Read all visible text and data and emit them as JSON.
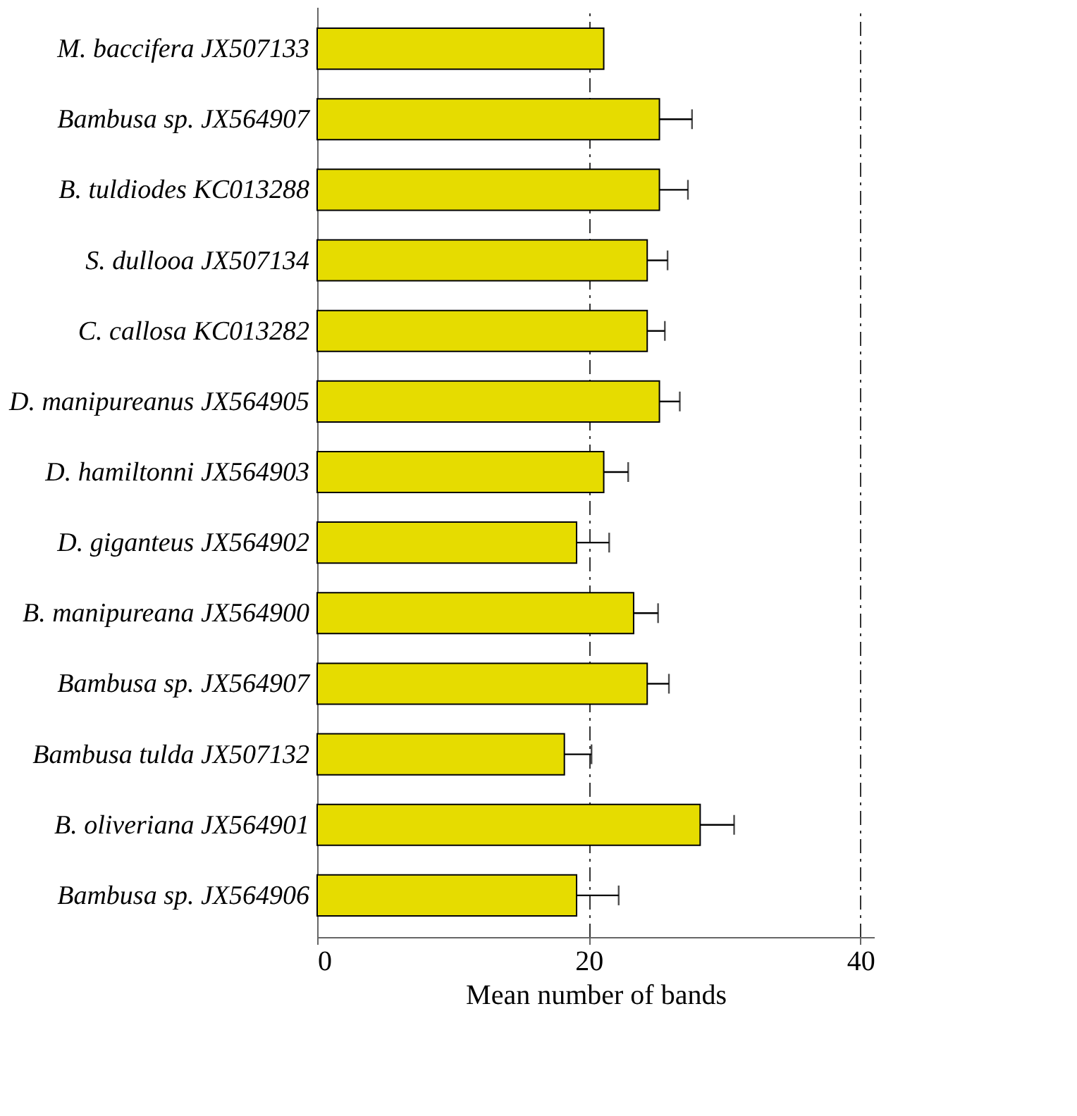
{
  "chart_data": {
    "type": "bar",
    "orientation": "horizontal",
    "xlabel": "Mean number of bands",
    "categories": [
      "M. baccifera JX507133",
      "Bambusa sp. JX564907",
      "B. tuldiodes KC013288",
      "S. dullooa JX507134",
      "C. callosa KC013282",
      "D. manipureanus JX564905",
      "D. hamiltonni JX564903",
      "D. giganteus JX564902",
      "B. manipureana JX564900",
      "Bambusa sp. JX564907",
      "Bambusa tulda JX507132",
      "B. oliveriana JX564901",
      "Bambusa sp. JX564906"
    ],
    "values": [
      21.1,
      25.2,
      25.2,
      24.3,
      24.3,
      25.2,
      21.1,
      19.1,
      23.3,
      24.3,
      18.2,
      28.2,
      19.1
    ],
    "errors": [
      null,
      [
        25.2,
        27.6
      ],
      [
        25.2,
        27.3
      ],
      [
        24.3,
        25.8
      ],
      [
        24.3,
        25.6
      ],
      [
        25.2,
        26.7
      ],
      [
        21.1,
        22.9
      ],
      [
        19.1,
        21.5
      ],
      [
        23.3,
        25.1
      ],
      [
        24.3,
        25.9
      ],
      [
        18.2,
        20.2
      ],
      [
        28.2,
        30.7
      ],
      [
        19.1,
        22.2
      ]
    ],
    "color": "#e6dc00",
    "xlim": [
      0,
      41
    ],
    "xticks": [
      0,
      20,
      40
    ],
    "grid": "x",
    "line_style": "dashed"
  }
}
